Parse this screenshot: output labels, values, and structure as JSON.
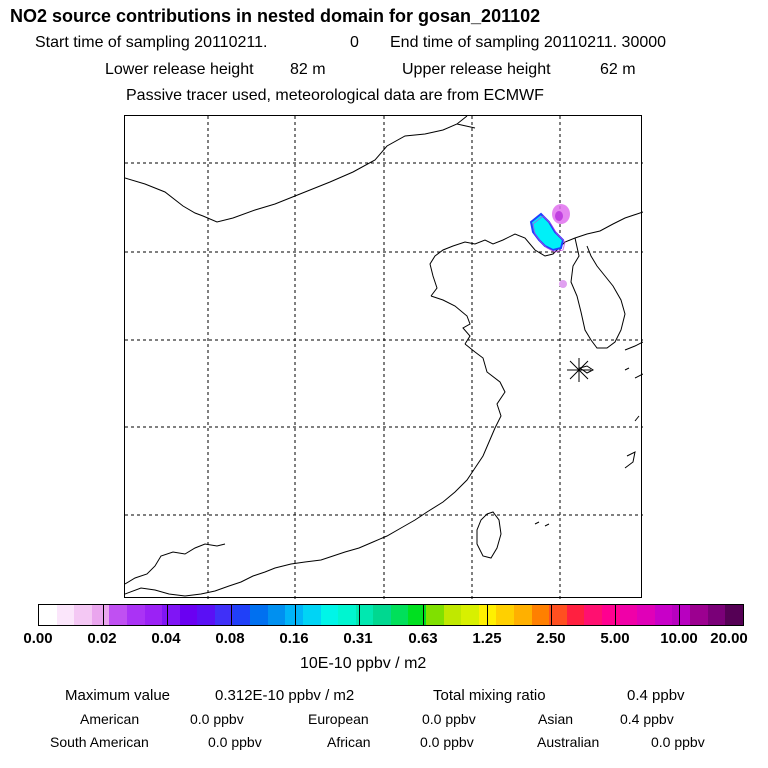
{
  "title": "NO2 source contributions in nested domain for gosan_201102",
  "header": {
    "start_label": "Start time of sampling 20110211.",
    "start_hour": "0",
    "end_label": "End time of sampling 20110211. 30000",
    "lower_label": "Lower release height",
    "lower_value": "82 m",
    "upper_label": "Upper release height",
    "upper_value": "62 m",
    "note": "Passive tracer used, meteorological data are from ECMWF"
  },
  "colorbar": {
    "colors": [
      "#ffffff",
      "#fbe6fb",
      "#f4c8f4",
      "#eaa6ee",
      "#c050f2",
      "#aa33f5",
      "#9b22f5",
      "#8015f5",
      "#6a00f2",
      "#5a10f5",
      "#4030f8",
      "#2040f8",
      "#0070f0",
      "#0090f0",
      "#00b4f8",
      "#00d4f5",
      "#00f5e8",
      "#00f5d0",
      "#00e8b0",
      "#00d890",
      "#00e05a",
      "#00e020",
      "#80e000",
      "#c0e800",
      "#d8f000",
      "#fff000",
      "#ffd000",
      "#ffb000",
      "#ff8000",
      "#ff5020",
      "#ff2040",
      "#ff1070",
      "#ff0090",
      "#f000a8",
      "#e000b8",
      "#c800c8",
      "#b800c0",
      "#9c0090",
      "#7a0078",
      "#550055"
    ],
    "labels": [
      "0.00",
      "0.02",
      "0.04",
      "0.08",
      "0.16",
      "0.31",
      "0.63",
      "1.25",
      "2.50",
      "5.00",
      "10.00",
      "20.00"
    ],
    "units": "10E-10 ppbv / m2"
  },
  "stats": {
    "max_label": "Maximum value",
    "max_value": "0.312E-10 ppbv / m2",
    "total_label": "Total mixing ratio",
    "total_value": "0.4 ppbv",
    "regions": [
      {
        "name": "American",
        "value": "0.0 ppbv"
      },
      {
        "name": "European",
        "value": "0.0 ppbv"
      },
      {
        "name": "Asian",
        "value": "0.4 ppbv"
      },
      {
        "name": "South American",
        "value": "0.0 ppbv"
      },
      {
        "name": "African",
        "value": "0.0 ppbv"
      },
      {
        "name": "Australian",
        "value": "0.0 ppbv"
      }
    ]
  },
  "colors": {
    "plume_core": "#00f0f8",
    "plume_edge": "#2040ff",
    "plume_halo": "#c040e0",
    "frame": "#000000"
  }
}
